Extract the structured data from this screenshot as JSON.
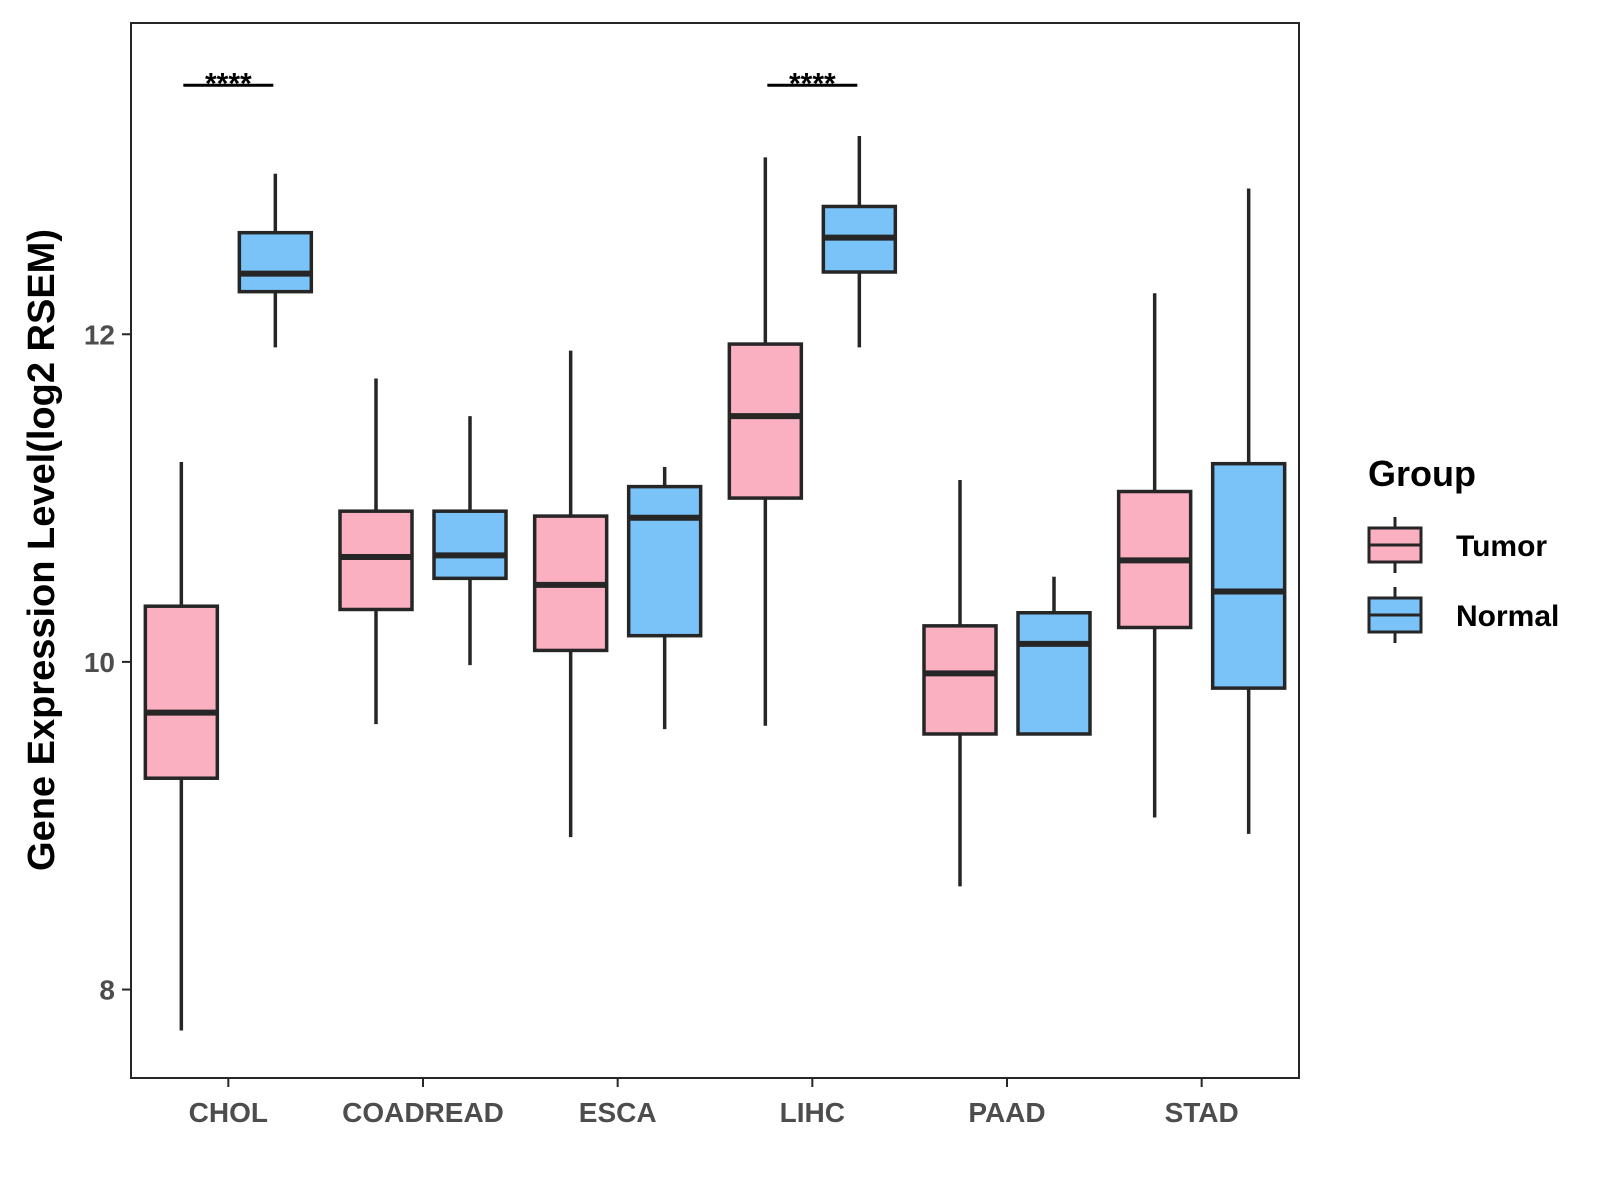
{
  "chart_data": {
    "type": "boxplot",
    "ylabel": "Gene Expression Level(log2 RSEM)",
    "xlabel": "",
    "ylim": [
      7.46,
      13.9
    ],
    "yticks": [
      8,
      10,
      12
    ],
    "categories": [
      "CHOL",
      "COADREAD",
      "ESCA",
      "LIHC",
      "PAAD",
      "STAD"
    ],
    "legend": {
      "title": "Group",
      "position": "right",
      "entries": [
        "Tumor",
        "Normal"
      ]
    },
    "colors": {
      "Tumor": "#fbb0c1",
      "Normal": "#79c3f8",
      "outline": "#262626"
    },
    "series": [
      {
        "name": "Tumor",
        "boxes": [
          {
            "category": "CHOL",
            "min": 7.75,
            "q1": 9.29,
            "median": 9.69,
            "q3": 10.34,
            "max": 11.22
          },
          {
            "category": "COADREAD",
            "min": 9.62,
            "q1": 10.32,
            "median": 10.64,
            "q3": 10.92,
            "max": 11.73
          },
          {
            "category": "ESCA",
            "min": 8.93,
            "q1": 10.07,
            "median": 10.47,
            "q3": 10.89,
            "max": 11.9
          },
          {
            "category": "LIHC",
            "min": 9.61,
            "q1": 11.0,
            "median": 11.5,
            "q3": 11.94,
            "max": 13.08
          },
          {
            "category": "PAAD",
            "min": 8.63,
            "q1": 9.56,
            "median": 9.93,
            "q3": 10.22,
            "max": 11.11
          },
          {
            "category": "STAD",
            "min": 9.05,
            "q1": 10.21,
            "median": 10.62,
            "q3": 11.04,
            "max": 12.25
          }
        ]
      },
      {
        "name": "Normal",
        "boxes": [
          {
            "category": "CHOL",
            "min": 11.92,
            "q1": 12.26,
            "median": 12.37,
            "q3": 12.62,
            "max": 12.98
          },
          {
            "category": "COADREAD",
            "min": 9.98,
            "q1": 10.51,
            "median": 10.65,
            "q3": 10.92,
            "max": 11.5
          },
          {
            "category": "ESCA",
            "min": 9.59,
            "q1": 10.16,
            "median": 10.88,
            "q3": 11.07,
            "max": 11.19
          },
          {
            "category": "LIHC",
            "min": 11.92,
            "q1": 12.38,
            "median": 12.59,
            "q3": 12.78,
            "max": 13.21
          },
          {
            "category": "PAAD",
            "min": 9.56,
            "q1": 9.56,
            "median": 10.11,
            "q3": 10.3,
            "max": 10.52
          },
          {
            "category": "STAD",
            "min": 8.95,
            "q1": 9.84,
            "median": 10.43,
            "q3": 11.21,
            "max": 12.89
          }
        ]
      }
    ],
    "annotations": [
      {
        "category": "CHOL",
        "label": "****",
        "y": 13.52
      },
      {
        "category": "LIHC",
        "label": "****",
        "y": 13.52
      }
    ]
  }
}
